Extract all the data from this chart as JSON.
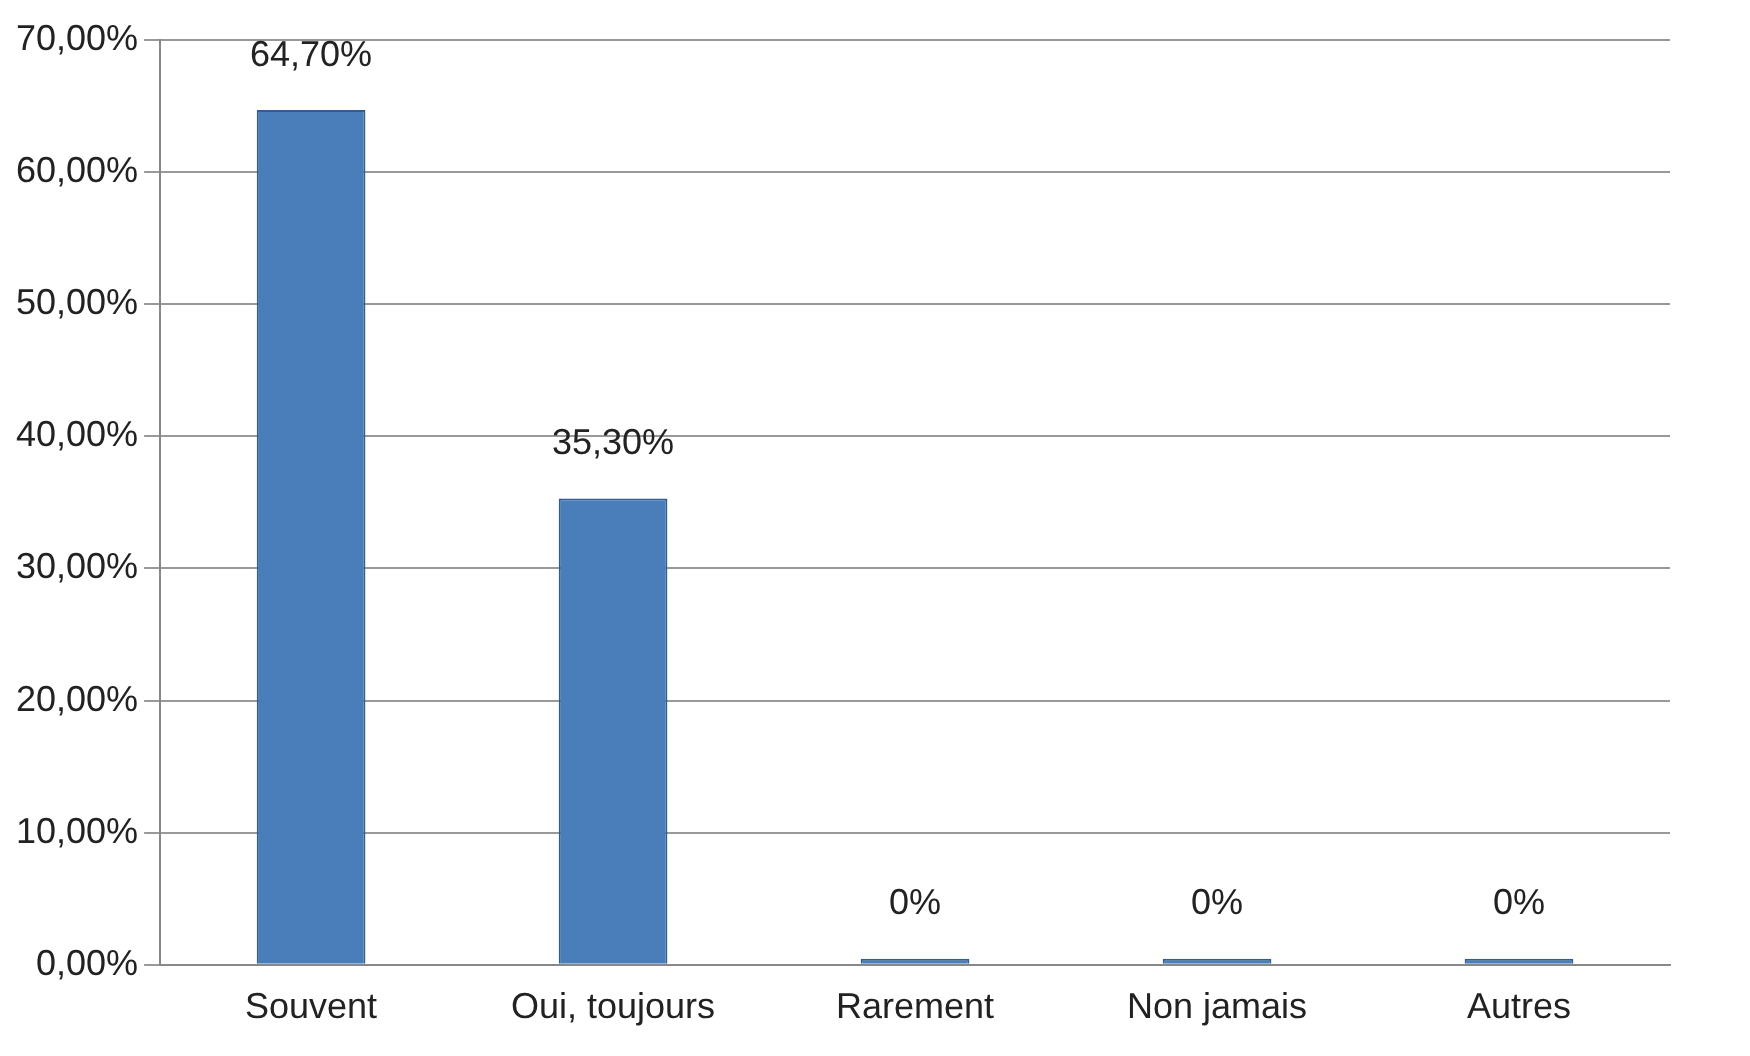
{
  "chart_data": {
    "type": "bar",
    "categories": [
      "Souvent",
      "Oui, toujours",
      "Rarement",
      "Non jamais",
      "Autres"
    ],
    "values": [
      64.7,
      35.3,
      0,
      0,
      0
    ],
    "value_labels": [
      "64,70%",
      "35,30%",
      "0%",
      "0%",
      "0%"
    ],
    "color": "#4a7ebb",
    "ylim": [
      0,
      70
    ],
    "yticks": [
      {
        "value": 0,
        "label": "0,00%"
      },
      {
        "value": 10,
        "label": "10,00%"
      },
      {
        "value": 20,
        "label": "20,00%"
      },
      {
        "value": 30,
        "label": "30,00%"
      },
      {
        "value": 40,
        "label": "40,00%"
      },
      {
        "value": 50,
        "label": "50,00%"
      },
      {
        "value": 60,
        "label": "60,00%"
      },
      {
        "value": 70,
        "label": "70,00%"
      }
    ],
    "grid": "y",
    "legend": false
  }
}
